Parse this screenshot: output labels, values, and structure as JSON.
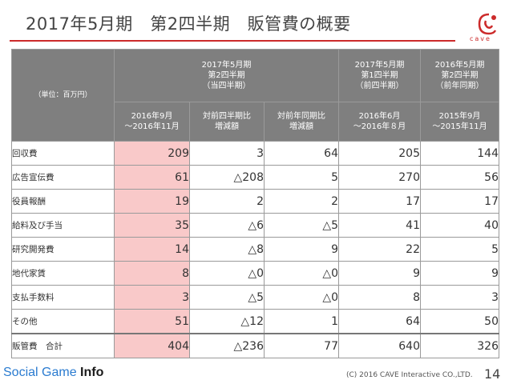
{
  "title": "2017年5月期　第2四半期　販管費の概要",
  "brand": {
    "logo_text": "cave",
    "accent": "#cc2a2a"
  },
  "table": {
    "unit": "（単位：百万円）",
    "group_current": "2017年5月期\n第2四半期\n（当四半期）",
    "group_prev_q": "2017年5月期\n第1四半期\n（前四半期）",
    "group_prev_y": "2016年5月期\n第2四半期\n（前年同期）",
    "sub_current": "2016年9月\n～2016年11月",
    "sub_qoq": "対前四半期比\n増減額",
    "sub_yoy": "対前年同期比\n増減額",
    "sub_prev_q": "2016年6月\n～2016年８月",
    "sub_prev_y": "2015年9月\n～2015年11月",
    "rows": [
      {
        "label": "回収費",
        "cur": "209",
        "qoq": "3",
        "yoy": "64",
        "prevq": "205",
        "prevy": "144"
      },
      {
        "label": "広告宣伝費",
        "cur": "61",
        "qoq": "△208",
        "yoy": "5",
        "prevq": "270",
        "prevy": "56"
      },
      {
        "label": "役員報酬",
        "cur": "19",
        "qoq": "2",
        "yoy": "2",
        "prevq": "17",
        "prevy": "17"
      },
      {
        "label": "給料及び手当",
        "cur": "35",
        "qoq": "△6",
        "yoy": "△5",
        "prevq": "41",
        "prevy": "40"
      },
      {
        "label": "研究開発費",
        "cur": "14",
        "qoq": "△8",
        "yoy": "9",
        "prevq": "22",
        "prevy": "5"
      },
      {
        "label": "地代家賃",
        "cur": "8",
        "qoq": "△0",
        "yoy": "△0",
        "prevq": "9",
        "prevy": "9"
      },
      {
        "label": "支払手数料",
        "cur": "3",
        "qoq": "△5",
        "yoy": "△0",
        "prevq": "8",
        "prevy": "3"
      },
      {
        "label": "その他",
        "cur": "51",
        "qoq": "△12",
        "yoy": "1",
        "prevq": "64",
        "prevy": "50"
      }
    ],
    "total": {
      "label": "販管費　合計",
      "cur": "404",
      "qoq": "△236",
      "yoy": "77",
      "prevq": "640",
      "prevy": "326"
    }
  },
  "footer": {
    "brand_light": "Social Game ",
    "brand_bold": "Info",
    "copyright": "(C) 2016 CAVE Interactive CO.,LTD.",
    "page": "14"
  }
}
